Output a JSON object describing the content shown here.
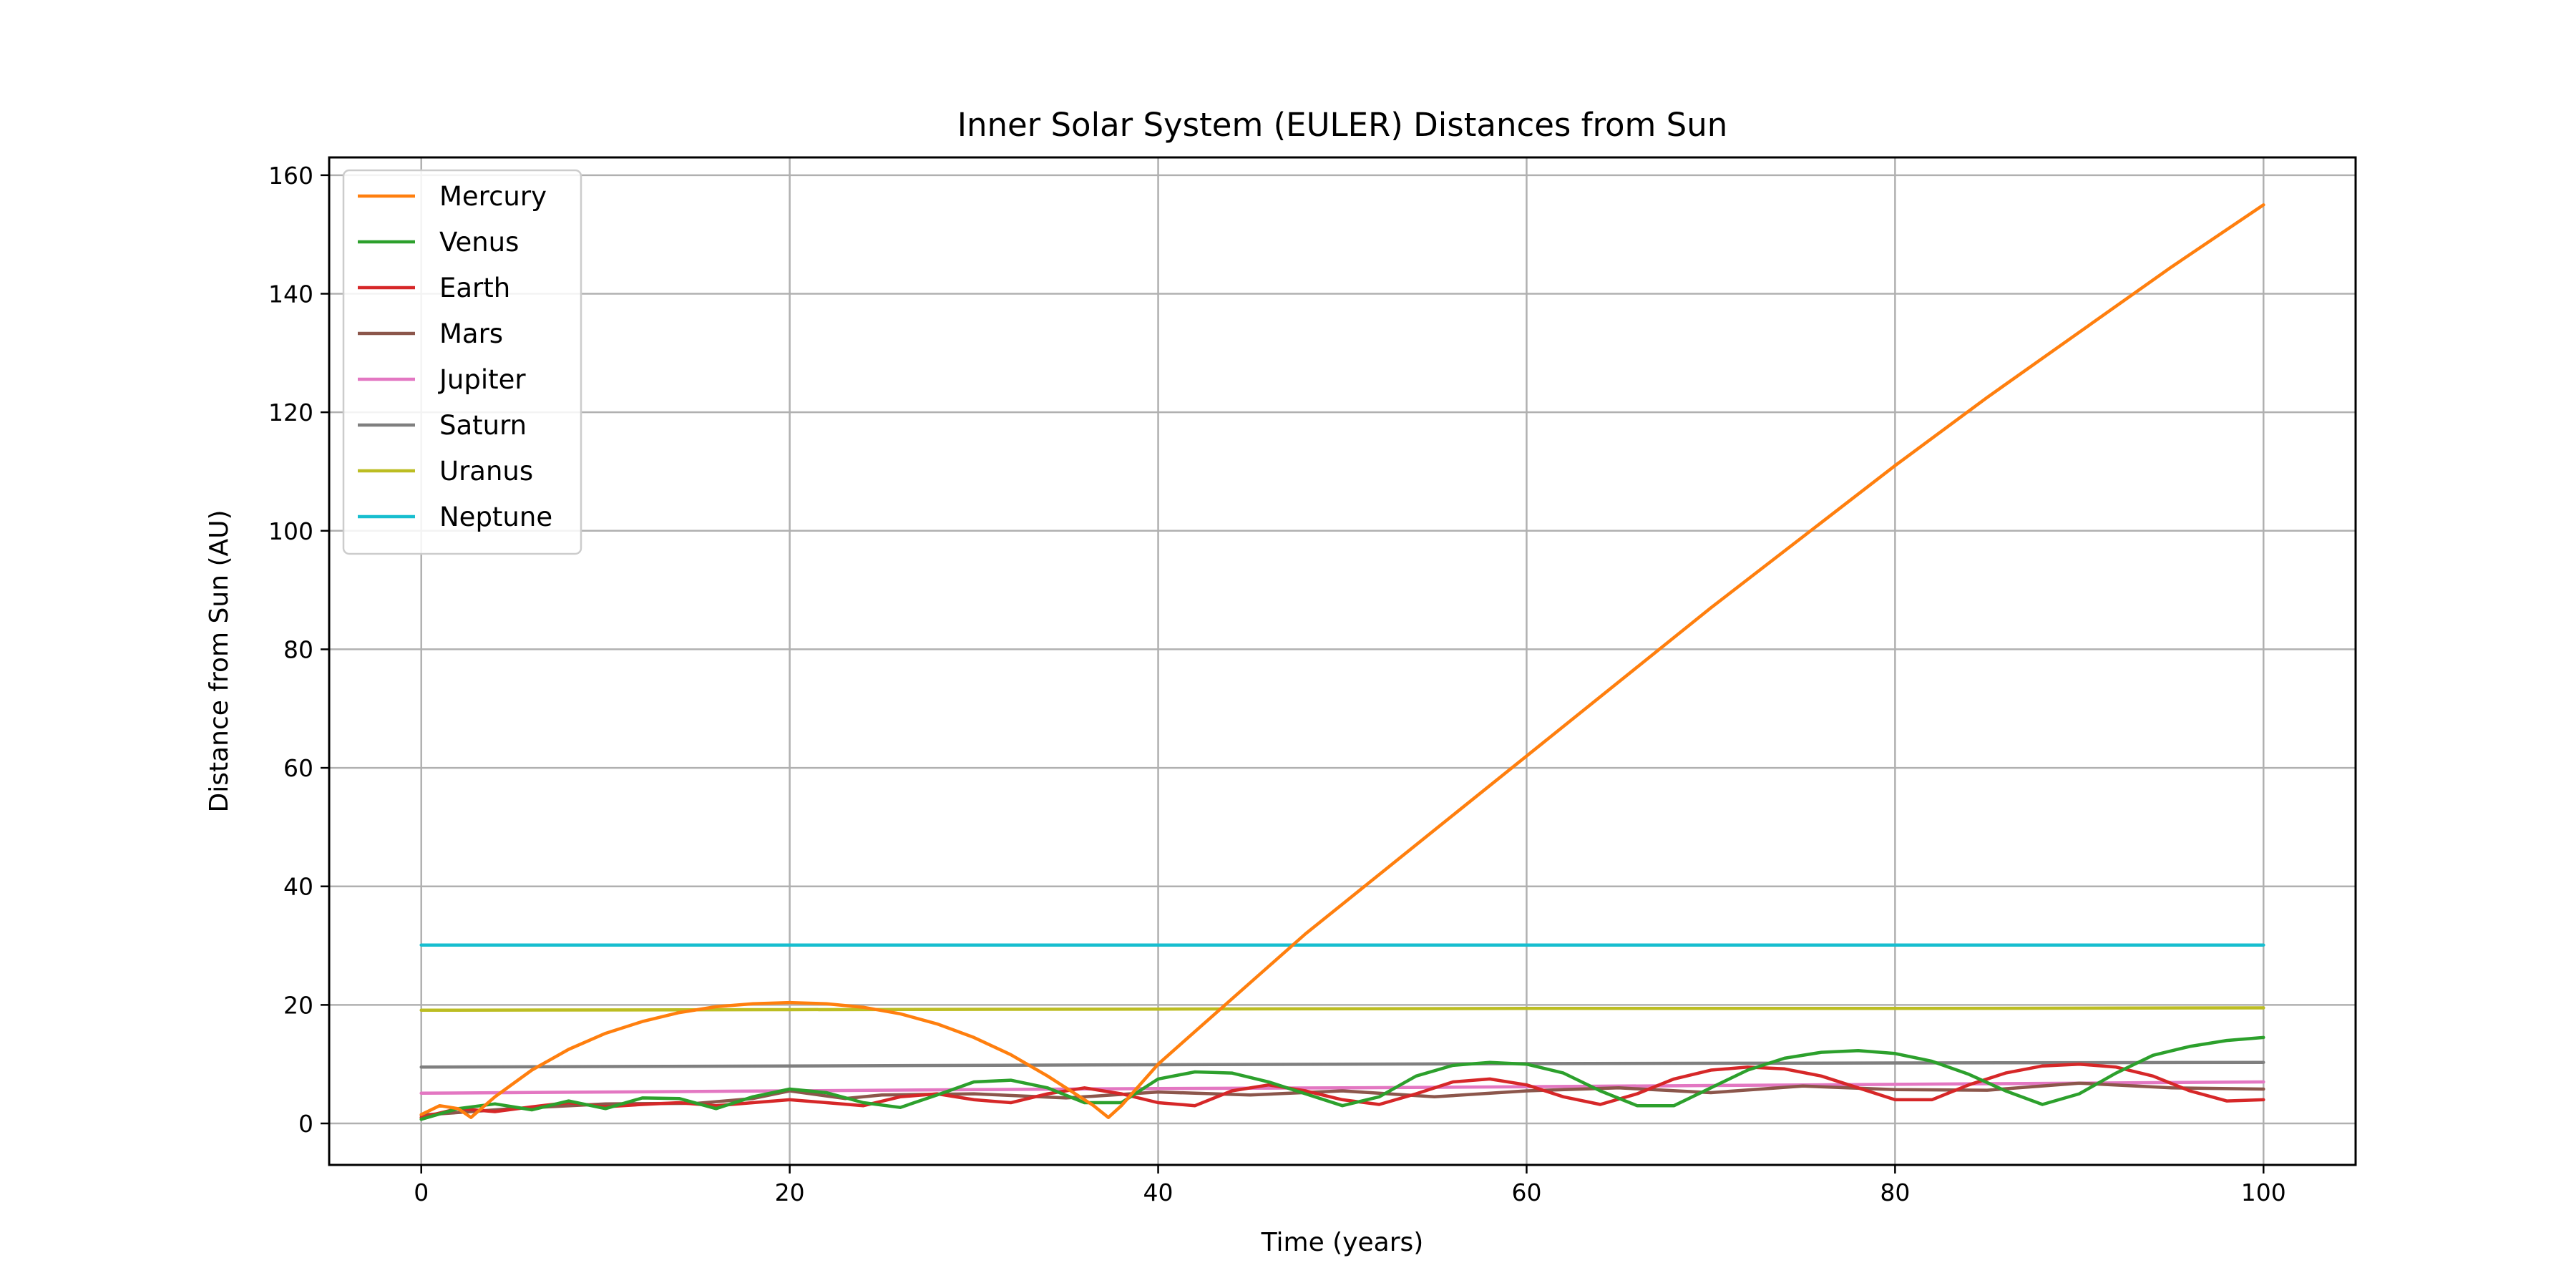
{
  "chart_data": {
    "type": "line",
    "title": "Inner Solar System (EULER) Distances from Sun",
    "xlabel": "Time (years)",
    "ylabel": "Distance from Sun (AU)",
    "xlim": [
      -5,
      105
    ],
    "ylim": [
      -7,
      163
    ],
    "xticks": [
      0,
      20,
      40,
      60,
      80,
      100
    ],
    "yticks": [
      0,
      20,
      40,
      60,
      80,
      100,
      120,
      140,
      160
    ],
    "grid": true,
    "legend_position": "upper-left",
    "series": [
      {
        "name": "Mercury",
        "color": "#ff7f0e",
        "x": [
          0,
          1,
          2,
          2.7,
          4,
          6,
          8,
          10,
          12,
          14,
          16,
          18,
          20,
          22,
          24,
          26,
          28,
          30,
          32,
          34,
          35.5,
          36.5,
          37.3,
          38,
          39,
          40,
          42,
          44,
          46,
          48,
          50,
          55,
          60,
          65,
          70,
          75,
          80,
          85,
          90,
          95,
          100
        ],
        "y": [
          1.5,
          3,
          2.5,
          1,
          4.5,
          9,
          12.5,
          15.2,
          17.2,
          18.7,
          19.7,
          20.2,
          20.4,
          20.2,
          19.6,
          18.5,
          16.8,
          14.5,
          11.6,
          8,
          5,
          3,
          1,
          3,
          6.5,
          10,
          15.5,
          21,
          26.5,
          32,
          37,
          49.5,
          62,
          74.5,
          87,
          99,
          111,
          122.5,
          133.5,
          144.5,
          155
        ]
      },
      {
        "name": "Venus",
        "color": "#2ca02c",
        "x": [
          0,
          2,
          4,
          6,
          8,
          10,
          12,
          14,
          16,
          18,
          20,
          22,
          24,
          26,
          28,
          30,
          32,
          34,
          36,
          38,
          40,
          42,
          44,
          46,
          48,
          50,
          52,
          54,
          56,
          58,
          60,
          62,
          64,
          66,
          68,
          70,
          72,
          74,
          76,
          78,
          80,
          82,
          84,
          86,
          88,
          90,
          92,
          94,
          96,
          98,
          100
        ],
        "y": [
          0.7,
          2.5,
          3.3,
          2.3,
          3.8,
          2.5,
          4.3,
          4.2,
          2.5,
          4.5,
          5.8,
          5.2,
          3.5,
          2.7,
          4.8,
          7,
          7.3,
          6,
          3.5,
          3.5,
          7.5,
          8.7,
          8.5,
          7,
          5,
          3,
          4.5,
          8,
          9.8,
          10.3,
          10,
          8.5,
          5.5,
          3,
          3,
          6,
          9,
          11,
          12,
          12.3,
          11.8,
          10.5,
          8.3,
          5.5,
          3.2,
          5,
          8.5,
          11.5,
          13,
          14,
          14.5
        ]
      },
      {
        "name": "Earth",
        "color": "#d62728",
        "x": [
          0,
          2,
          4,
          6,
          8,
          10,
          12,
          14,
          16,
          18,
          20,
          22,
          24,
          26,
          28,
          30,
          32,
          34,
          36,
          38,
          40,
          42,
          44,
          46,
          48,
          50,
          52,
          54,
          56,
          58,
          60,
          62,
          64,
          66,
          68,
          70,
          72,
          74,
          76,
          78,
          80,
          82,
          84,
          86,
          88,
          90,
          92,
          94,
          96,
          98,
          100
        ],
        "y": [
          1,
          2.5,
          2,
          2.8,
          3.5,
          2.8,
          3.2,
          3.5,
          3,
          3.5,
          4,
          3.5,
          3,
          4.5,
          5,
          4,
          3.5,
          5,
          6,
          5,
          3.5,
          3,
          5.5,
          6.5,
          5.5,
          4,
          3.2,
          5,
          7,
          7.5,
          6.5,
          4.5,
          3.2,
          5,
          7.5,
          9,
          9.5,
          9.2,
          8,
          6,
          4,
          4,
          6.5,
          8.5,
          9.7,
          10,
          9.5,
          8,
          5.5,
          3.8,
          4
        ]
      },
      {
        "name": "Mars",
        "color": "#8c564b",
        "x": [
          0,
          5,
          10,
          15,
          18,
          20,
          23,
          25,
          30,
          35,
          40,
          45,
          50,
          55,
          60,
          65,
          70,
          75,
          80,
          85,
          90,
          95,
          100
        ],
        "y": [
          1.4,
          2.5,
          3.3,
          3.4,
          4.2,
          5.5,
          4.2,
          4.8,
          5,
          4.3,
          5.3,
          4.8,
          5.5,
          4.5,
          5.5,
          6,
          5.2,
          6.3,
          5.7,
          5.6,
          6.8,
          6,
          5.8
        ]
      },
      {
        "name": "Jupiter",
        "color": "#e377c2",
        "x": [
          0,
          10,
          20,
          30,
          40,
          50,
          60,
          70,
          80,
          90,
          100
        ],
        "y": [
          5.1,
          5.3,
          5.5,
          5.7,
          5.9,
          6.0,
          6.2,
          6.4,
          6.6,
          6.8,
          7.0
        ]
      },
      {
        "name": "Saturn",
        "color": "#7f7f7f",
        "x": [
          0,
          20,
          40,
          60,
          80,
          100
        ],
        "y": [
          9.5,
          9.7,
          9.9,
          10.1,
          10.2,
          10.3
        ]
      },
      {
        "name": "Uranus",
        "color": "#bcbd22",
        "x": [
          0,
          20,
          40,
          60,
          80,
          100
        ],
        "y": [
          19.1,
          19.2,
          19.3,
          19.4,
          19.4,
          19.5
        ]
      },
      {
        "name": "Neptune",
        "color": "#17becf",
        "x": [
          0,
          20,
          40,
          60,
          80,
          100
        ],
        "y": [
          30.1,
          30.1,
          30.1,
          30.1,
          30.1,
          30.1
        ]
      }
    ]
  }
}
